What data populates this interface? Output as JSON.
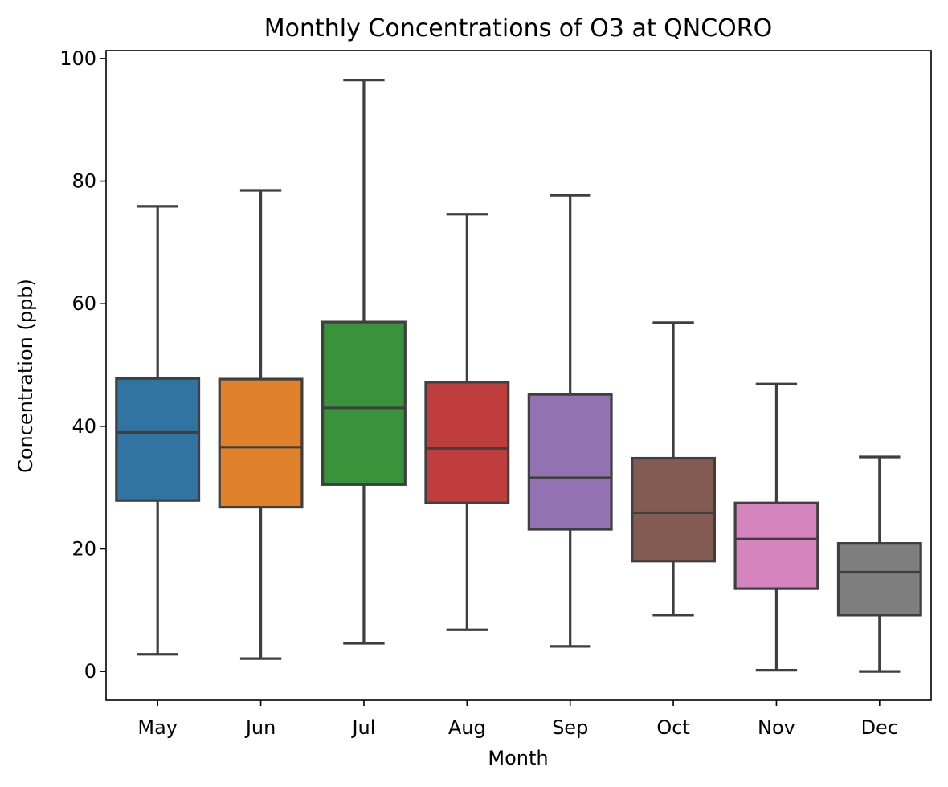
{
  "chart_data": {
    "type": "box",
    "title": "Monthly Concentrations of O3 at QNCORO",
    "xlabel": "Month",
    "ylabel": "Concentration (ppb)",
    "ylim": [
      -4.7,
      101.3
    ],
    "yticks": [
      0,
      20,
      40,
      60,
      80,
      100
    ],
    "grid": false,
    "legend": "none",
    "line_color": "#3f3f3f",
    "categories": [
      "May",
      "Jun",
      "Jul",
      "Aug",
      "Sep",
      "Oct",
      "Nov",
      "Dec"
    ],
    "boxes": [
      {
        "label": "May",
        "whisker_low": 2.8,
        "q1": 27.9,
        "median": 39.0,
        "q3": 47.8,
        "whisker_high": 75.9,
        "color": "#3274a1"
      },
      {
        "label": "Jun",
        "whisker_low": 2.1,
        "q1": 26.8,
        "median": 36.6,
        "q3": 47.7,
        "whisker_high": 78.5,
        "color": "#e1812c"
      },
      {
        "label": "Jul",
        "whisker_low": 4.6,
        "q1": 30.5,
        "median": 43.0,
        "q3": 57.0,
        "whisker_high": 96.5,
        "color": "#3a923a"
      },
      {
        "label": "Aug",
        "whisker_low": 6.8,
        "q1": 27.5,
        "median": 36.4,
        "q3": 47.2,
        "whisker_high": 74.6,
        "color": "#c03d3e"
      },
      {
        "label": "Sep",
        "whisker_low": 4.1,
        "q1": 23.2,
        "median": 31.6,
        "q3": 45.2,
        "whisker_high": 77.7,
        "color": "#9372b2"
      },
      {
        "label": "Oct",
        "whisker_low": 9.2,
        "q1": 18.0,
        "median": 25.9,
        "q3": 34.8,
        "whisker_high": 56.9,
        "color": "#845b53"
      },
      {
        "label": "Nov",
        "whisker_low": 0.2,
        "q1": 13.5,
        "median": 21.6,
        "q3": 27.5,
        "whisker_high": 46.9,
        "color": "#d684bd"
      },
      {
        "label": "Dec",
        "whisker_low": 0.0,
        "q1": 9.2,
        "median": 16.2,
        "q3": 20.9,
        "whisker_high": 35.0,
        "color": "#7f7f7f"
      }
    ]
  }
}
